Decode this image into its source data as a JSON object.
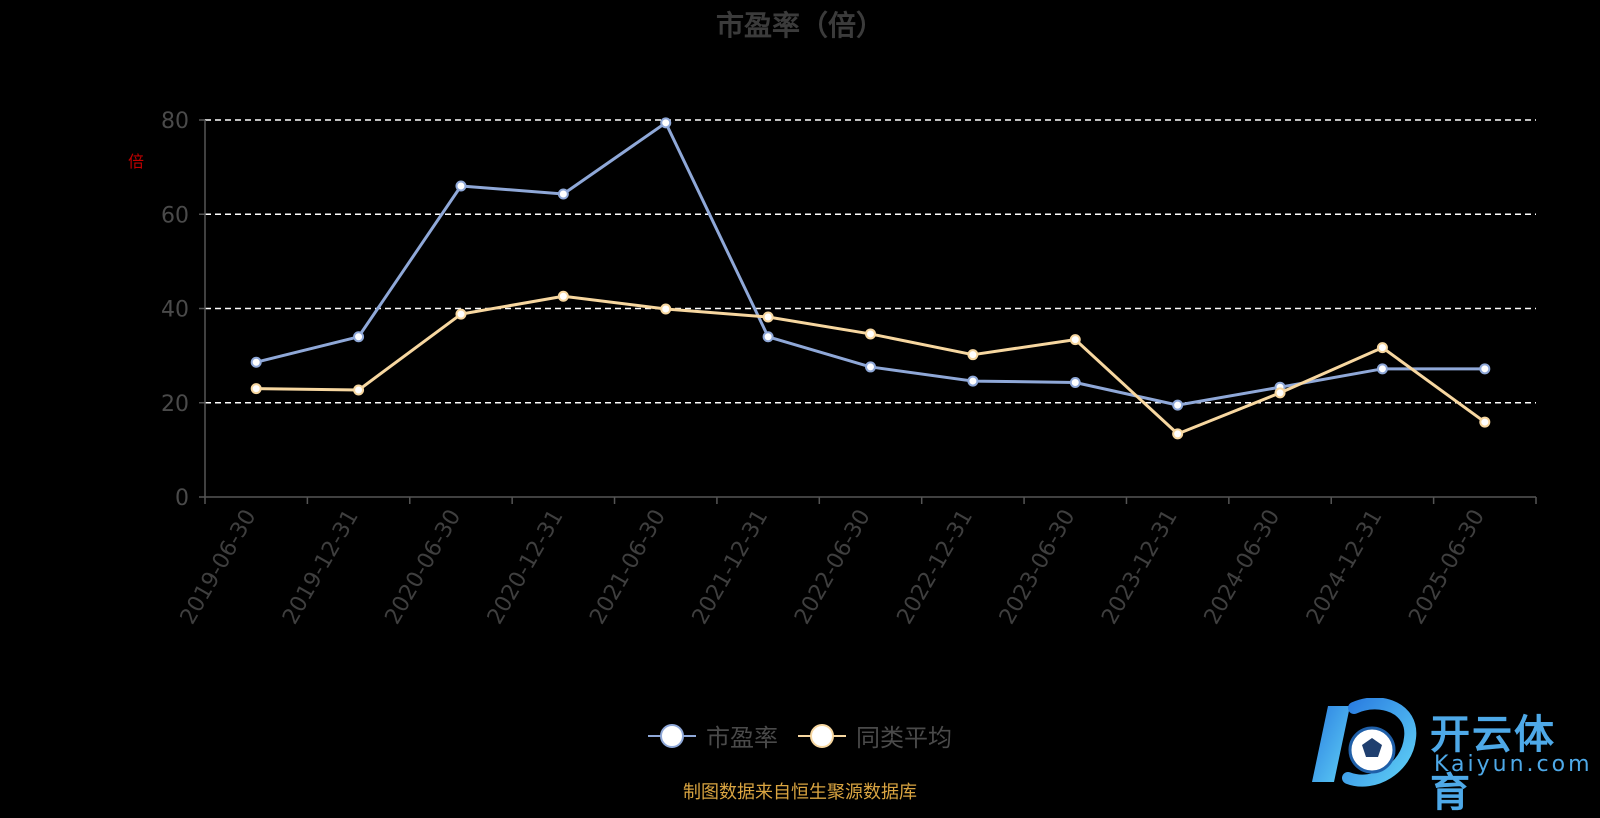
{
  "chart_data": {
    "type": "line",
    "title": "市盈率（倍）",
    "ylabel": "倍",
    "xlabel": "",
    "ylim": [
      0,
      80
    ],
    "yticks": [
      0,
      20,
      40,
      60,
      80
    ],
    "grid": true,
    "legend_position": "bottom-center",
    "categories": [
      "2019-06-30",
      "2019-12-31",
      "2020-06-30",
      "2020-12-31",
      "2021-06-30",
      "2021-12-31",
      "2022-06-30",
      "2022-12-31",
      "2023-06-30",
      "2023-12-31",
      "2024-06-30",
      "2024-12-31",
      "2025-06-30"
    ],
    "series": [
      {
        "name": "市盈率",
        "color": "#8fa8d8",
        "values": [
          28.6,
          34.0,
          66.0,
          64.3,
          79.4,
          34.0,
          27.6,
          24.6,
          24.3,
          19.5,
          23.3,
          27.2,
          27.2
        ]
      },
      {
        "name": "同类平均",
        "color": "#f7d7a0",
        "values": [
          23.0,
          22.7,
          38.8,
          42.6,
          39.9,
          38.2,
          34.6,
          30.2,
          33.4,
          13.4,
          22.1,
          31.7,
          15.9
        ]
      }
    ]
  },
  "source_note": "制图数据来自恒生聚源数据库",
  "logo": {
    "brand": "开云体育",
    "url": "Kaiyun.com"
  }
}
